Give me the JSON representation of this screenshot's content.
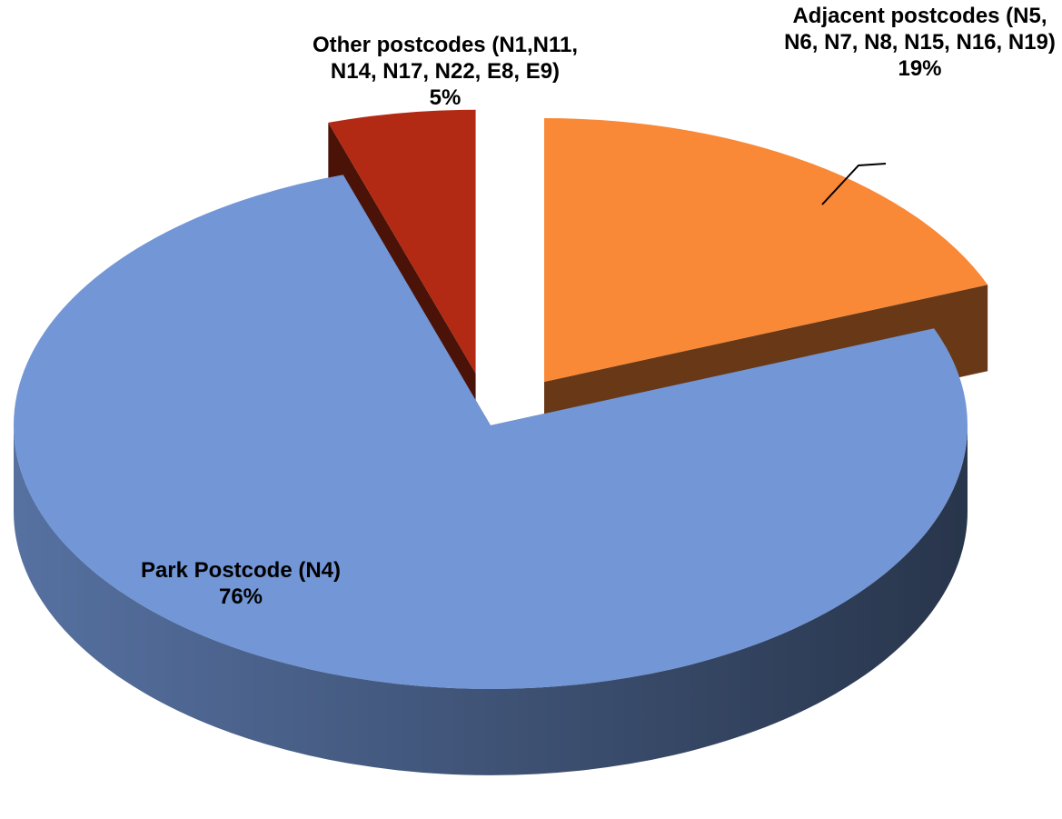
{
  "chart_data": {
    "type": "pie",
    "categories": [
      "Adjacent postcodes (N5, N6, N7, N8, N15, N16, N19)",
      "Park Postcode (N4)",
      "Other postcodes (N1,N11, N14, N17, N22, E8, E9)"
    ],
    "values": [
      19,
      76,
      5
    ],
    "value_labels": [
      "19%",
      "76%",
      "5%"
    ],
    "colors": [
      "#f98837",
      "#7396d6",
      "#b22a14"
    ]
  }
}
